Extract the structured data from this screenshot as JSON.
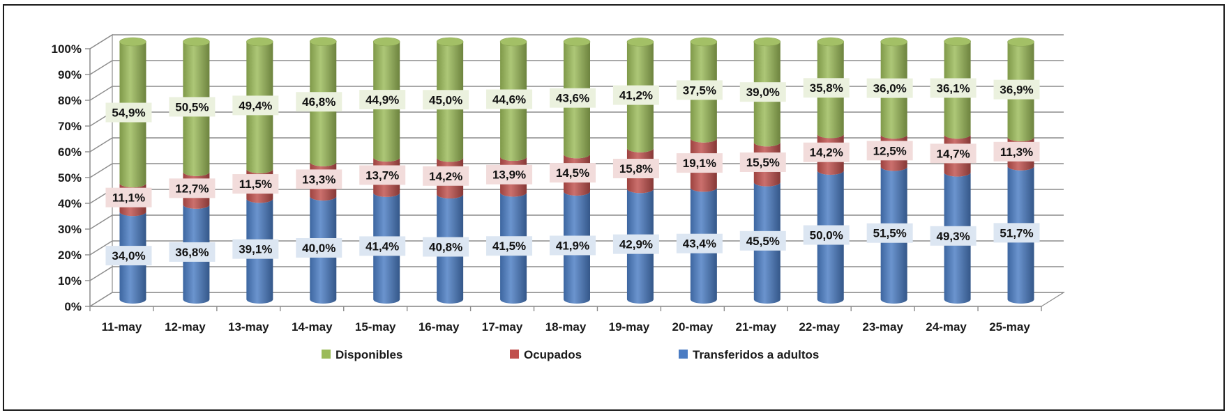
{
  "chart_data": {
    "type": "bar",
    "stacked": true,
    "normalized": true,
    "style": "3d-cylinder",
    "categories": [
      "11-may",
      "12-may",
      "13-may",
      "14-may",
      "15-may",
      "16-may",
      "17-may",
      "18-may",
      "19-may",
      "20-may",
      "21-may",
      "22-may",
      "23-may",
      "24-may",
      "25-may"
    ],
    "series": [
      {
        "name": "Transferidos a adultos",
        "color": "#4a7cc3",
        "values": [
          34.0,
          36.8,
          39.1,
          40.0,
          41.4,
          40.8,
          41.5,
          41.9,
          42.9,
          43.4,
          45.5,
          50.0,
          51.5,
          49.3,
          51.7
        ],
        "labels": [
          "34,0%",
          "36,8%",
          "39,1%",
          "40,0%",
          "41,4%",
          "40,8%",
          "41,5%",
          "41,9%",
          "42,9%",
          "43,4%",
          "45,5%",
          "50,0%",
          "51,5%",
          "49,3%",
          "51,7%"
        ]
      },
      {
        "name": "Ocupados",
        "color": "#c0504d",
        "values": [
          11.1,
          12.7,
          11.5,
          13.3,
          13.7,
          14.2,
          13.9,
          14.5,
          15.8,
          19.1,
          15.5,
          14.2,
          12.5,
          14.7,
          11.3
        ],
        "labels": [
          "11,1%",
          "12,7%",
          "11,5%",
          "13,3%",
          "13,7%",
          "14,2%",
          "13,9%",
          "14,5%",
          "15,8%",
          "19,1%",
          "15,5%",
          "14,2%",
          "12,5%",
          "14,7%",
          "11,3%"
        ]
      },
      {
        "name": "Disponibles",
        "color": "#9bbb59",
        "values": [
          54.9,
          50.5,
          49.4,
          46.8,
          44.9,
          45.0,
          44.6,
          43.6,
          41.2,
          37.5,
          39.0,
          35.8,
          36.0,
          36.1,
          36.9
        ],
        "labels": [
          "54,9%",
          "50,5%",
          "49,4%",
          "46,8%",
          "44,9%",
          "45,0%",
          "44,6%",
          "43,6%",
          "41,2%",
          "37,5%",
          "39,0%",
          "35,8%",
          "36,0%",
          "36,1%",
          "36,9%"
        ]
      }
    ],
    "ylim": [
      0,
      100
    ],
    "yticks": [
      "0%",
      "10%",
      "20%",
      "30%",
      "40%",
      "50%",
      "60%",
      "70%",
      "80%",
      "90%",
      "100%"
    ],
    "grid": true,
    "legend_position": "bottom",
    "legend_order": [
      "Disponibles",
      "Ocupados",
      "Transferidos a adultos"
    ],
    "title": "",
    "xlabel": "",
    "ylabel": ""
  }
}
